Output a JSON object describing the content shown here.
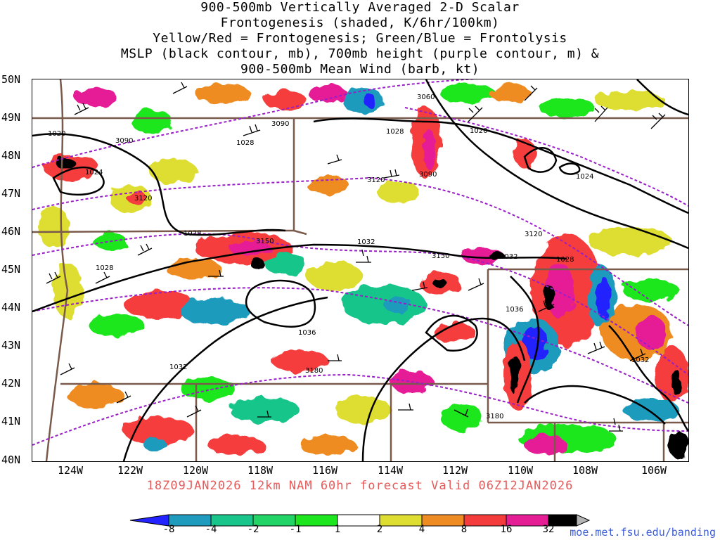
{
  "title": {
    "line1": "900-500mb Vertically Averaged 2-D Scalar",
    "line2": "Frontogenesis (shaded, K/6hr/100km)",
    "line3": "Yellow/Red = Frontogenesis;  Green/Blue = Frontolysis",
    "line4": "MSLP (black contour, mb), 700mb height (purple contour, m) &",
    "line5": "900-500mb Mean Wind (barb, kt)"
  },
  "axes": {
    "lat_labels": [
      "50N",
      "49N",
      "48N",
      "47N",
      "46N",
      "45N",
      "44N",
      "43N",
      "42N",
      "41N",
      "40N"
    ],
    "lon_labels": [
      "124W",
      "122W",
      "120W",
      "118W",
      "116W",
      "114W",
      "112W",
      "110W",
      "108W",
      "106W"
    ]
  },
  "contour_labels": {
    "mslp": [
      "1020",
      "1024",
      "1028",
      "1028",
      "1028",
      "1032",
      "1036",
      "1032",
      "1028",
      "1032",
      "1036",
      "1032",
      "1024",
      "1020",
      "1028"
    ],
    "height": [
      "3060",
      "3090",
      "3090",
      "3120",
      "3120",
      "3150",
      "3150",
      "3120",
      "3180",
      "3180",
      "3090"
    ]
  },
  "caption": "18Z09JAN2026 12km NAM 60hr forecast Valid 06Z12JAN2026",
  "colorbar": {
    "tick_labels": [
      "-8",
      "-4",
      "-2",
      "-1",
      "1",
      "2",
      "4",
      "8",
      "16",
      "32"
    ],
    "colors": [
      "#2323ff",
      "#1e9bbd",
      "#19c58a",
      "#22d466",
      "#1ee61e",
      "#ffffff",
      "#dede32",
      "#ee8c23",
      "#f53c3c",
      "#e61e96",
      "#000000",
      "#b4b4b4"
    ]
  },
  "credit": "moe.met.fsu.edu/banding"
}
